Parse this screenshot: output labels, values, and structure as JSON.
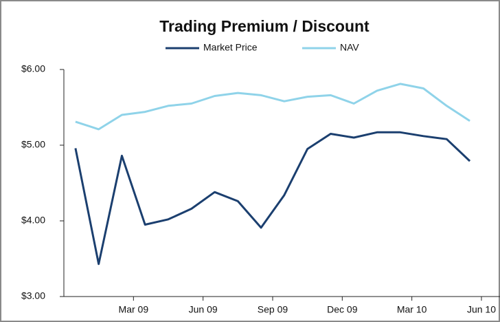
{
  "chart_data": {
    "type": "line",
    "title": "Trading Premium / Discount",
    "x": [
      0.5,
      1.5,
      2.5,
      3.5,
      4.5,
      5.5,
      6.5,
      7.5,
      8.5,
      9.5,
      10.5,
      11.5,
      12.5,
      13.5,
      14.5,
      15.5,
      16.5,
      17.5
    ],
    "series": [
      {
        "name": "Market Price",
        "color": "#1b3f6f",
        "values": [
          4.96,
          3.43,
          4.86,
          3.95,
          4.02,
          4.16,
          4.38,
          4.26,
          3.91,
          4.34,
          4.95,
          5.15,
          5.1,
          5.17,
          5.17,
          5.12,
          5.08,
          4.79
        ]
      },
      {
        "name": "NAV",
        "color": "#8fd3e9",
        "values": [
          5.31,
          5.21,
          5.4,
          5.44,
          5.52,
          5.55,
          5.65,
          5.69,
          5.66,
          5.58,
          5.64,
          5.66,
          5.55,
          5.72,
          5.81,
          5.75,
          5.52,
          5.32
        ]
      }
    ],
    "xlim": [
      0,
      18.8
    ],
    "xticks": [
      {
        "value": 3,
        "label": "Mar 09"
      },
      {
        "value": 6,
        "label": "Jun 09"
      },
      {
        "value": 9,
        "label": "Sep 09"
      },
      {
        "value": 12,
        "label": "Dec 09"
      },
      {
        "value": 15,
        "label": "Mar 10"
      },
      {
        "value": 18,
        "label": "Jun 10"
      }
    ],
    "ylim": [
      3,
      6
    ],
    "yticks": [
      {
        "value": 3,
        "label": "$3.00"
      },
      {
        "value": 4,
        "label": "$4.00"
      },
      {
        "value": 5,
        "label": "$5.00"
      },
      {
        "value": 6,
        "label": "$6.00"
      }
    ],
    "legend": "top"
  }
}
